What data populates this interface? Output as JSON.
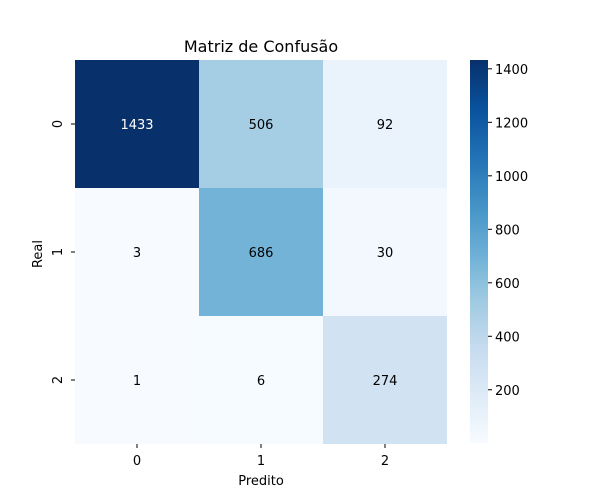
{
  "chart_data": {
    "type": "heatmap",
    "title": "Matriz de Confusão",
    "xlabel": "Predito",
    "ylabel": "Real",
    "x_categories": [
      "0",
      "1",
      "2"
    ],
    "y_categories": [
      "0",
      "1",
      "2"
    ],
    "values": [
      [
        1433,
        506,
        92
      ],
      [
        3,
        686,
        30
      ],
      [
        1,
        6,
        274
      ]
    ],
    "colorbar": {
      "min": 1,
      "max": 1433,
      "ticks": [
        200,
        400,
        600,
        800,
        1000,
        1200,
        1400
      ]
    },
    "colormap": "Blues",
    "colormap_stops": [
      "#f7fbff",
      "#deebf7",
      "#c6dbef",
      "#9ecae1",
      "#6baed6",
      "#4292c6",
      "#2171b5",
      "#08519c",
      "#08306b"
    ]
  }
}
